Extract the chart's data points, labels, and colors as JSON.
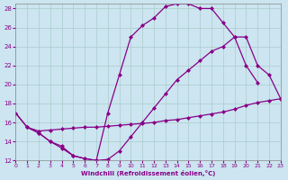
{
  "background_color": "#cce5f0",
  "grid_color": "#aacccc",
  "line_color": "#880088",
  "xlim": [
    0,
    23
  ],
  "ylim": [
    12,
    28
  ],
  "xticks": [
    0,
    1,
    2,
    3,
    4,
    5,
    6,
    7,
    8,
    9,
    10,
    11,
    12,
    13,
    14,
    15,
    16,
    17,
    18,
    19,
    20,
    21,
    22,
    23
  ],
  "yticks": [
    12,
    14,
    16,
    18,
    20,
    22,
    24,
    26,
    28
  ],
  "xlabel": "Windchill (Refroidissement éolien,°C)",
  "curve1_x": [
    0,
    1,
    2,
    3,
    4,
    5,
    6,
    7,
    8,
    9,
    10,
    11,
    12,
    13,
    14,
    15,
    16,
    17,
    18,
    19,
    20,
    21
  ],
  "curve1_y": [
    17.0,
    15.5,
    14.9,
    14.0,
    13.5,
    12.5,
    12.2,
    12.0,
    17.0,
    21.0,
    25.0,
    26.2,
    27.0,
    28.2,
    28.5,
    28.5,
    28.0,
    28.0,
    26.5,
    25.0,
    22.0,
    20.2
  ],
  "curve2_x": [
    0,
    1,
    2,
    3,
    4,
    5,
    6,
    7,
    8,
    9,
    10,
    11,
    12,
    13,
    14,
    15,
    16,
    17,
    18,
    19,
    20,
    21,
    22,
    23
  ],
  "curve2_y": [
    17.0,
    15.5,
    14.9,
    14.0,
    13.3,
    12.5,
    12.2,
    12.0,
    12.1,
    13.0,
    14.5,
    16.0,
    17.5,
    19.0,
    20.5,
    21.5,
    22.5,
    23.5,
    24.0,
    25.0,
    25.0,
    22.0,
    21.0,
    18.5
  ],
  "curve3_x": [
    1,
    2,
    3,
    4,
    5,
    6,
    7,
    8,
    9,
    10,
    11,
    12,
    13,
    14,
    15,
    16,
    17,
    18,
    19,
    20,
    21,
    22,
    23
  ],
  "curve3_y": [
    15.5,
    15.1,
    15.2,
    15.3,
    15.4,
    15.5,
    15.5,
    15.6,
    15.7,
    15.8,
    15.9,
    16.0,
    16.2,
    16.3,
    16.5,
    16.7,
    16.9,
    17.1,
    17.4,
    17.8,
    18.1,
    18.3,
    18.5
  ]
}
